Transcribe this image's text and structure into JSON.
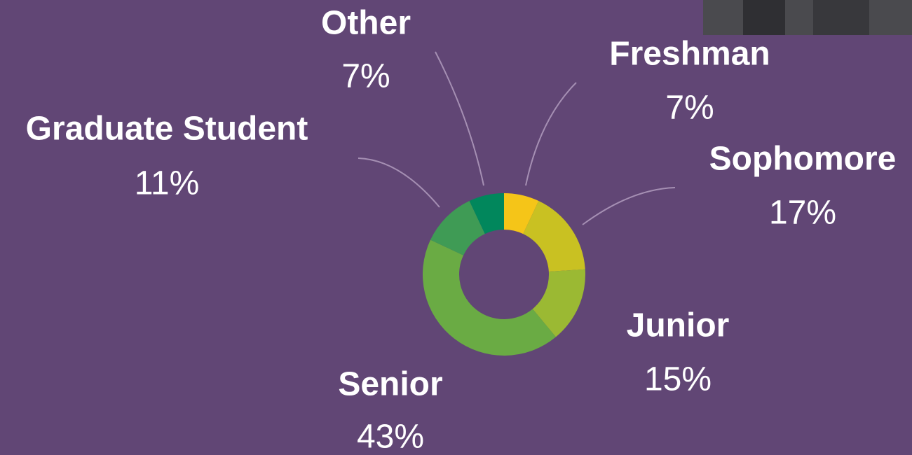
{
  "chart_data": {
    "type": "donut",
    "categories": [
      "Freshman",
      "Sophomore",
      "Junior",
      "Senior",
      "Graduate Student",
      "Other"
    ],
    "values": [
      7,
      17,
      15,
      43,
      11,
      7
    ],
    "value_labels": [
      "7%",
      "17%",
      "15%",
      "43%",
      "11%",
      "7%"
    ],
    "colors": [
      "#f5c518",
      "#c9c122",
      "#9bb933",
      "#6aab44",
      "#3f9b55",
      "#01875c"
    ]
  }
}
